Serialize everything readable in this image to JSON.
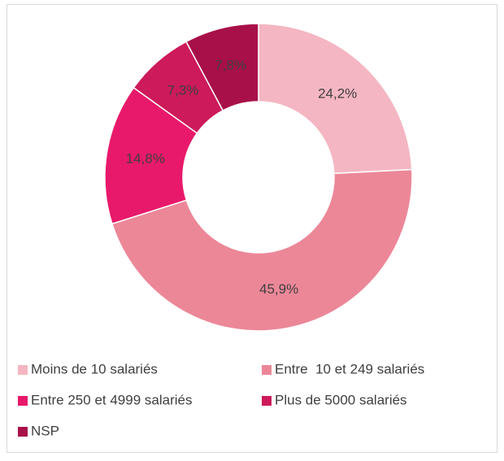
{
  "chart_data": {
    "type": "donut",
    "categories": [
      "Moins de 10 salariés",
      "Entre  10 et 249 salariés",
      "Entre 250 et 4999 salariés",
      "Plus de 5000 salariés",
      "NSP"
    ],
    "values": [
      24.2,
      45.9,
      14.8,
      7.3,
      7.8
    ],
    "value_labels": [
      "24,2%",
      "45,9%",
      "14,8%",
      "7,3%",
      "7,8%"
    ],
    "colors": [
      "#f4b6c2",
      "#ec8798",
      "#e8196a",
      "#cc1a5a",
      "#a81049"
    ],
    "legend": "bottom"
  }
}
